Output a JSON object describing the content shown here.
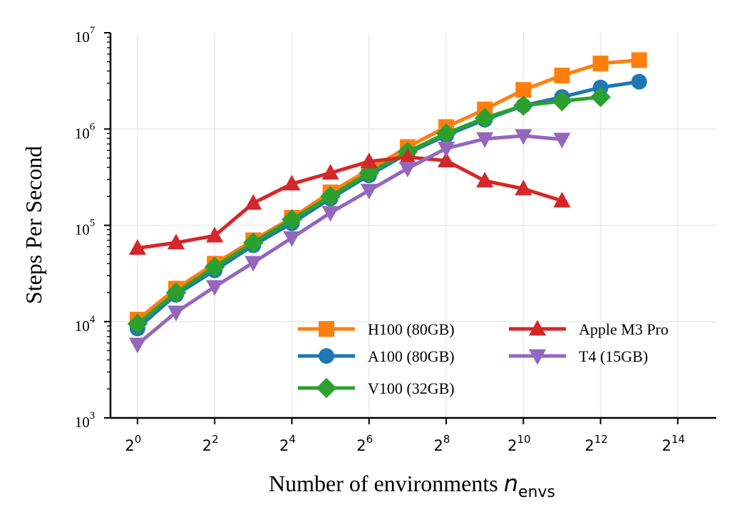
{
  "chart_data": {
    "type": "line",
    "x_scale": "log2",
    "y_scale": "log10",
    "xlabel": "Number of environments",
    "xlabel_math": "n",
    "xlabel_sub": "envs",
    "ylabel": "Steps Per Second",
    "xlim_exp": [
      -0.7,
      15.0
    ],
    "ylim_exp": [
      3,
      7
    ],
    "x_ticks": [
      {
        "base": "2",
        "exp": "0"
      },
      {
        "base": "2",
        "exp": "2"
      },
      {
        "base": "2",
        "exp": "4"
      },
      {
        "base": "2",
        "exp": "6"
      },
      {
        "base": "2",
        "exp": "8"
      },
      {
        "base": "2",
        "exp": "10"
      },
      {
        "base": "2",
        "exp": "12"
      },
      {
        "base": "2",
        "exp": "14"
      }
    ],
    "y_ticks": [
      {
        "base": "10",
        "exp": "3"
      },
      {
        "base": "10",
        "exp": "4"
      },
      {
        "base": "10",
        "exp": "5"
      },
      {
        "base": "10",
        "exp": "6"
      },
      {
        "base": "10",
        "exp": "7"
      }
    ],
    "grid": true,
    "legend_position": "lower-right",
    "series": [
      {
        "name": "H100 (80GB)",
        "color": "#ff7f0e",
        "marker": "square",
        "x": [
          1,
          2,
          4,
          8,
          16,
          32,
          64,
          128,
          256,
          512,
          1024,
          2048,
          4096,
          8192
        ],
        "y": [
          10500,
          22000,
          40000,
          70000,
          120000,
          220000,
          380000,
          650000,
          1050000,
          1600000,
          2550000,
          3600000,
          4800000,
          5200000
        ]
      },
      {
        "name": "A100 (80GB)",
        "color": "#1f77b4",
        "marker": "circle",
        "x": [
          1,
          2,
          4,
          8,
          16,
          32,
          64,
          128,
          256,
          512,
          1024,
          2048,
          4096,
          8192
        ],
        "y": [
          8500,
          19000,
          34000,
          62000,
          105000,
          190000,
          330000,
          560000,
          860000,
          1250000,
          1750000,
          2150000,
          2700000,
          3100000
        ]
      },
      {
        "name": "V100 (32GB)",
        "color": "#2ca02c",
        "marker": "diamond",
        "x": [
          1,
          2,
          4,
          8,
          16,
          32,
          64,
          128,
          256,
          512,
          1024,
          2048,
          4096
        ],
        "y": [
          9500,
          20000,
          37000,
          66000,
          115000,
          200000,
          350000,
          580000,
          900000,
          1300000,
          1750000,
          1950000,
          2150000
        ]
      },
      {
        "name": "Apple M3 Pro",
        "color": "#d62728",
        "marker": "triangle-up",
        "x": [
          1,
          2,
          4,
          8,
          16,
          32,
          64,
          128,
          256,
          512,
          1024,
          2048
        ],
        "y": [
          58000,
          66000,
          78000,
          170000,
          270000,
          350000,
          460000,
          510000,
          470000,
          290000,
          240000,
          180000
        ]
      },
      {
        "name": "T4 (15GB)",
        "color": "#9467bd",
        "marker": "triangle-down",
        "x": [
          1,
          2,
          4,
          8,
          16,
          32,
          64,
          128,
          256,
          512,
          1024,
          2048
        ],
        "y": [
          5800,
          12500,
          23000,
          41000,
          74000,
          135000,
          230000,
          390000,
          630000,
          790000,
          850000,
          780000
        ]
      }
    ]
  }
}
